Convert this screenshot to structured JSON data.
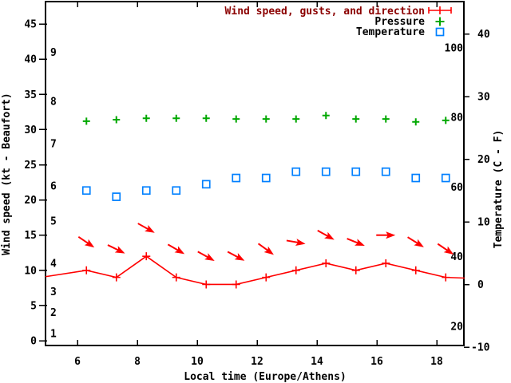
{
  "chart_data": {
    "type": "line",
    "background": "#ffffff",
    "colors": {
      "red": "#ff0000",
      "dark_red": "#8b0000",
      "green": "#00a800",
      "blue": "#0080ff",
      "black": "#000000"
    },
    "legend": [
      {
        "label": "Wind speed, gusts, and direction",
        "text_color": "#8b0000",
        "symbol": "errorbar-plus",
        "symbol_color": "#ff0000"
      },
      {
        "label": "Pressure",
        "text_color": "#000000",
        "symbol": "plus",
        "symbol_color": "#00a800"
      },
      {
        "label": "Temperature",
        "text_color": "#000000",
        "symbol": "open-square",
        "symbol_color": "#0080ff"
      }
    ],
    "x_axis": {
      "label": "Local time (Europe/Athens)",
      "ticks": [
        6,
        8,
        10,
        12,
        14,
        16,
        18
      ],
      "range_hours": [
        5,
        19
      ]
    },
    "y_left_axis": {
      "label": "Wind speed (kt - Beaufort)",
      "ticks_kt": [
        0,
        5,
        10,
        15,
        20,
        25,
        30,
        35,
        40,
        45
      ],
      "beaufort_labels": [
        {
          "text": "1",
          "kt": 1
        },
        {
          "text": "2",
          "kt": 4
        },
        {
          "text": "3",
          "kt": 7
        },
        {
          "text": "4",
          "kt": 11
        },
        {
          "text": "5",
          "kt": 17
        },
        {
          "text": "6",
          "kt": 22
        },
        {
          "text": "7",
          "kt": 28
        },
        {
          "text": "8",
          "kt": 34
        },
        {
          "text": "9",
          "kt": 41
        }
      ]
    },
    "y_right_axis": {
      "label": "Temperature (C - F)",
      "ticks_celsius": [
        -10,
        0,
        10,
        20,
        30,
        40
      ],
      "fahrenheit_labels": [
        20,
        40,
        60,
        80,
        100
      ]
    },
    "times_hours": [
      6.3,
      7.3,
      8.3,
      9.3,
      10.3,
      11.3,
      12.3,
      13.3,
      14.3,
      15.3,
      16.3,
      17.3,
      18.3
    ],
    "series": [
      {
        "name": "Wind speed",
        "unit": "kt",
        "marker": "plus",
        "color": "#ff0000",
        "values": [
          10,
          9,
          12,
          9,
          8,
          8,
          9,
          10,
          11,
          10,
          11,
          10,
          9
        ],
        "line_edge_left": {
          "hour": 4.93,
          "kt": 9.1
        },
        "line_edge_right": {
          "hour": 18.93,
          "kt": 8.9
        }
      },
      {
        "name": "Wind gusts and direction",
        "unit": "kt",
        "marker": "arrow",
        "color": "#ff0000",
        "values": [
          14,
          13,
          16,
          13,
          12,
          12,
          13,
          14,
          15,
          14,
          15,
          14,
          13
        ],
        "arrow_angles_deg_clockwise_from_east": [
          34,
          26,
          29,
          30,
          29,
          28,
          36,
          10,
          29,
          22,
          0,
          32,
          34
        ]
      },
      {
        "name": "Pressure",
        "axis_note": "plotted against unlabeled left-axis scale",
        "marker": "plus",
        "color": "#00a800",
        "values_left_axis_units": [
          31.2,
          31.4,
          31.6,
          31.6,
          31.6,
          31.5,
          31.5,
          31.5,
          32.0,
          31.5,
          31.5,
          31.1,
          31.3
        ]
      },
      {
        "name": "Temperature",
        "unit": "C",
        "marker": "open-square",
        "color": "#0080ff",
        "values_celsius": [
          15,
          14,
          15,
          15,
          16,
          17,
          17,
          18,
          18,
          18,
          18,
          17,
          17
        ]
      }
    ]
  }
}
